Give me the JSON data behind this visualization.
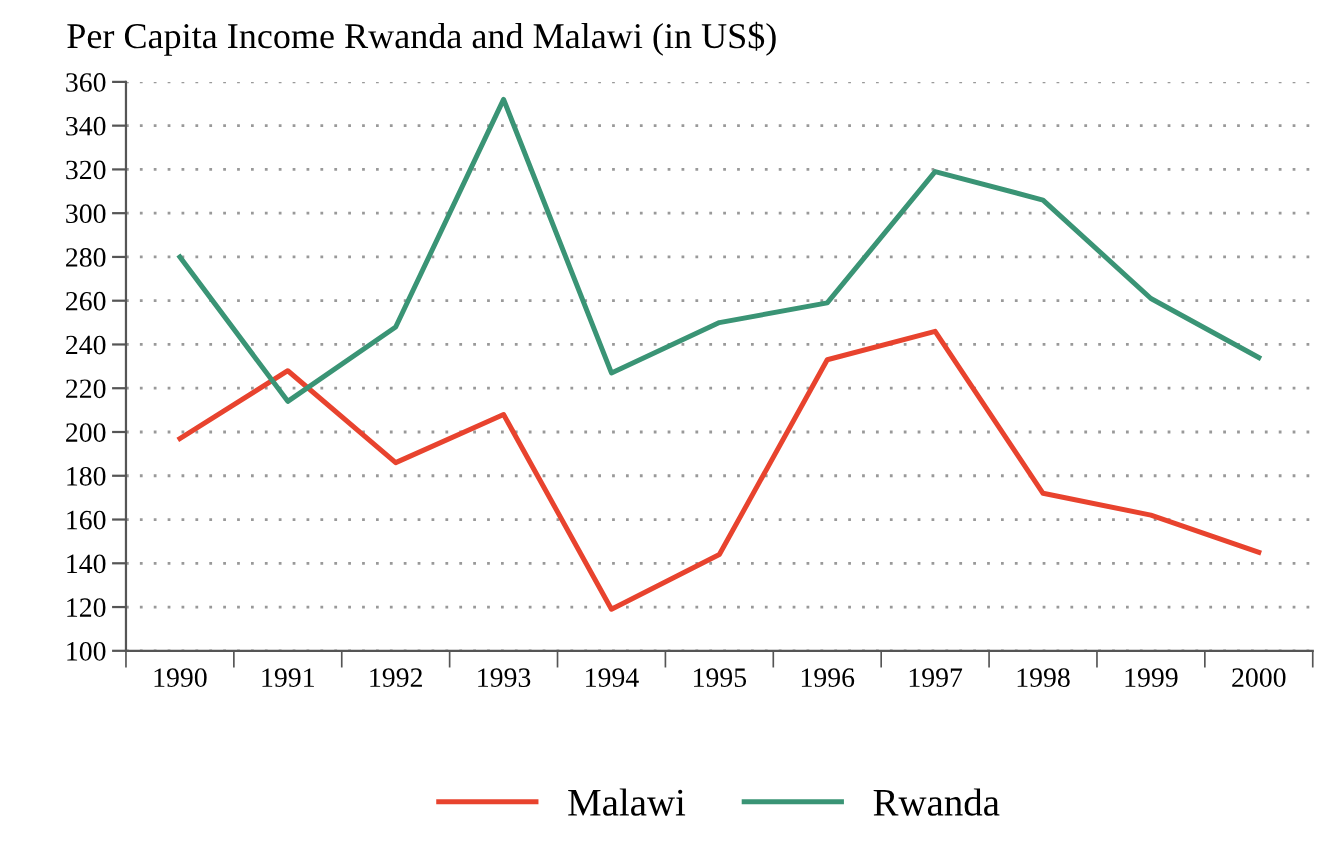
{
  "chart_data": {
    "type": "line",
    "title": "Per Capita Income Rwanda and Malawi (in US$)",
    "categories": [
      "1990",
      "1991",
      "1992",
      "1993",
      "1994",
      "1995",
      "1996",
      "1997",
      "1998",
      "1999",
      "2000"
    ],
    "series": [
      {
        "name": "Malawi",
        "color": "#e8432e",
        "values": [
          197,
          228,
          186,
          208,
          119,
          144,
          233,
          246,
          172,
          162,
          145
        ]
      },
      {
        "name": "Rwanda",
        "color": "#3a9475",
        "values": [
          280,
          214,
          248,
          352,
          227,
          250,
          259,
          319,
          306,
          261,
          234
        ]
      }
    ],
    "ylim": [
      100,
      360
    ],
    "yticks": [
      100,
      120,
      140,
      160,
      180,
      200,
      220,
      240,
      260,
      280,
      300,
      320,
      340,
      360
    ],
    "grid": "y",
    "legend": "bottom",
    "marker": "none",
    "line_style": "solid"
  }
}
